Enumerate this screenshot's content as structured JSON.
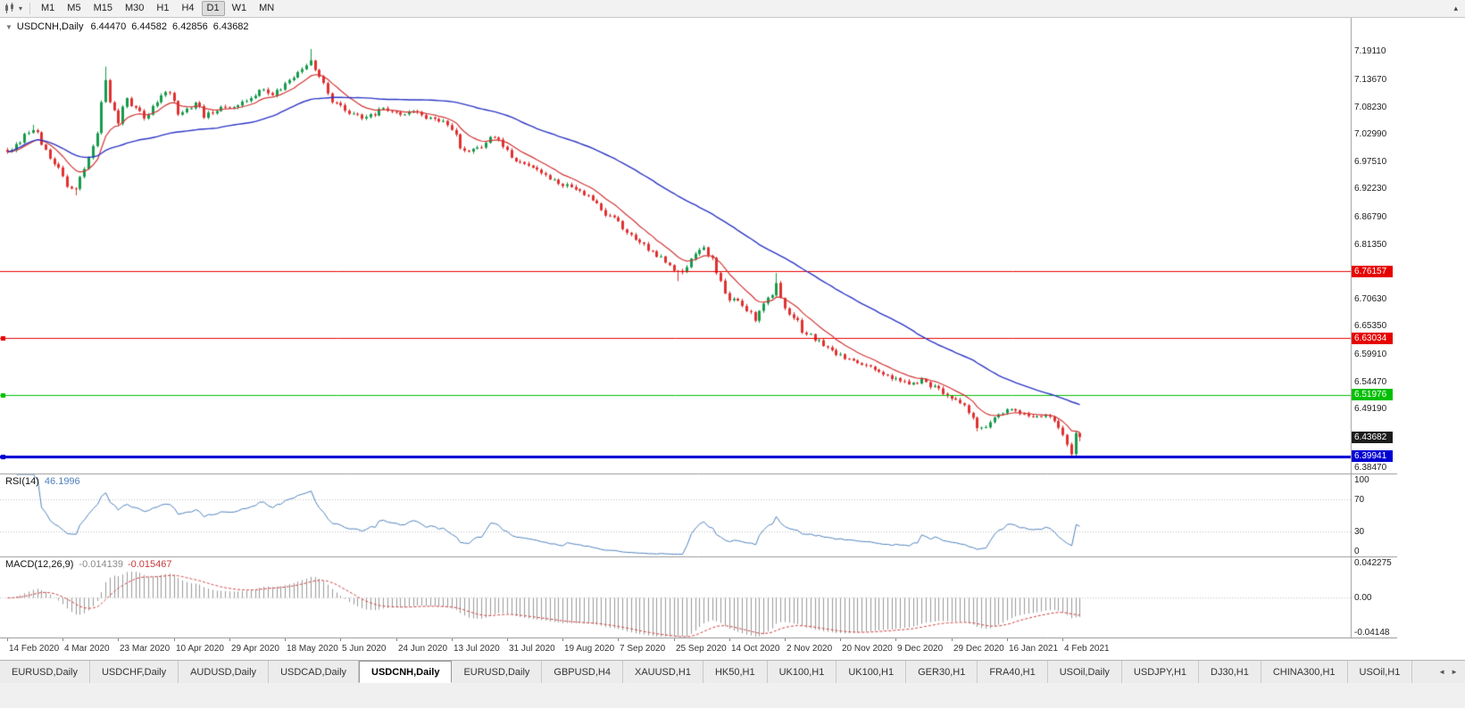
{
  "toolbar": {
    "timeframes": [
      "M1",
      "M5",
      "M15",
      "M30",
      "H1",
      "H4",
      "D1",
      "W1",
      "MN"
    ],
    "active_timeframe": "D1",
    "dropdown_glyph": "▾",
    "overflow_glyph": "▴"
  },
  "main_chart": {
    "collapse_glyph": "▼",
    "symbol": "USDCNH,Daily",
    "open": "6.44470",
    "high": "6.44582",
    "low": "6.42856",
    "close": "6.43682"
  },
  "rsi_panel": {
    "label": "RSI(14)",
    "value": "46.1996",
    "axis": [
      {
        "text": "100",
        "value": 100
      },
      {
        "text": "70",
        "value": 70
      },
      {
        "text": "30",
        "value": 30
      },
      {
        "text": "0",
        "value": 0
      }
    ]
  },
  "macd_panel": {
    "label": "MACD(12,26,9)",
    "value_macd": "-0.014139",
    "value_signal": "-0.015467",
    "axis": [
      {
        "text": "0.042275",
        "value": 0.042275
      },
      {
        "text": "0.00",
        "value": 0
      },
      {
        "text": "-0.04148",
        "value": -0.04148
      }
    ]
  },
  "price_axis": [
    {
      "text": "7.19110",
      "value": 7.1911,
      "type": "grid"
    },
    {
      "text": "7.13670",
      "value": 7.1367,
      "type": "grid"
    },
    {
      "text": "7.08230",
      "value": 7.0823,
      "type": "grid"
    },
    {
      "text": "7.02990",
      "value": 7.0299,
      "type": "grid"
    },
    {
      "text": "6.97510",
      "value": 6.9751,
      "type": "grid"
    },
    {
      "text": "6.92230",
      "value": 6.9223,
      "type": "grid"
    },
    {
      "text": "6.86790",
      "value": 6.8679,
      "type": "grid"
    },
    {
      "text": "6.81350",
      "value": 6.8135,
      "type": "grid"
    },
    {
      "text": "6.76157",
      "value": 6.76157,
      "type": "resistance"
    },
    {
      "text": "6.70630",
      "value": 6.7063,
      "type": "grid"
    },
    {
      "text": "6.65350",
      "value": 6.6535,
      "type": "grid"
    },
    {
      "text": "6.63034",
      "value": 6.63034,
      "type": "resistance"
    },
    {
      "text": "6.59910",
      "value": 6.5991,
      "type": "grid"
    },
    {
      "text": "6.54470",
      "value": 6.5447,
      "type": "grid"
    },
    {
      "text": "6.51976",
      "value": 6.51976,
      "type": "support"
    },
    {
      "text": "6.49190",
      "value": 6.4919,
      "type": "grid"
    },
    {
      "text": "6.43682",
      "value": 6.43682,
      "type": "price"
    },
    {
      "text": "6.39941",
      "value": 6.39941,
      "type": "key"
    },
    {
      "text": "6.38470",
      "value": 6.3847,
      "type": "grid"
    }
  ],
  "levels": [
    {
      "value": 6.76157,
      "color": "#e60000",
      "width": 1,
      "handle": false
    },
    {
      "value": 6.63034,
      "color": "#e60000",
      "width": 1,
      "handle": true
    },
    {
      "value": 6.51976,
      "color": "#00bf00",
      "width": 1,
      "handle": true
    },
    {
      "value": 6.39941,
      "color": "#0000d2",
      "width": 3,
      "handle": true
    }
  ],
  "colors": {
    "level_types": {
      "resistance": "#e60000",
      "support": "#00bf00",
      "key": "#0000d2",
      "price": "#1c1c1c"
    },
    "axis_text": "#1c1c1c"
  },
  "tabs": {
    "scroll_left": "◄",
    "scroll_right": "►",
    "items": [
      {
        "label": "EURUSD,Daily",
        "active": false
      },
      {
        "label": "USDCHF,Daily",
        "active": false
      },
      {
        "label": "AUDUSD,Daily",
        "active": false
      },
      {
        "label": "USDCAD,Daily",
        "active": false
      },
      {
        "label": "USDCNH,Daily",
        "active": true
      },
      {
        "label": "EURUSD,Daily",
        "active": false
      },
      {
        "label": "GBPUSD,H4",
        "active": false
      },
      {
        "label": "XAUUSD,H1",
        "active": false
      },
      {
        "label": "HK50,H1",
        "active": false
      },
      {
        "label": "UK100,H1",
        "active": false
      },
      {
        "label": "UK100,H1",
        "active": false
      },
      {
        "label": "GER30,H1",
        "active": false
      },
      {
        "label": "FRA40,H1",
        "active": false
      },
      {
        "label": "USOil,Daily",
        "active": false
      },
      {
        "label": "USDJPY,H1",
        "active": false
      },
      {
        "label": "DJ30,H1",
        "active": false
      },
      {
        "label": "CHINA300,H1",
        "active": false
      },
      {
        "label": "USOil,H1",
        "active": false
      }
    ]
  },
  "chart_data": {
    "type": "candlestick",
    "symbol": "USDCNH",
    "timeframe": "Daily",
    "title": "USDCNH,Daily",
    "bars": 252,
    "bars_per_label": 13,
    "ylim": [
      6.3655,
      7.2574
    ],
    "up_color": "#169b4b",
    "down_color": "#e03131",
    "x_labels": [
      "14 Feb 2020",
      "4 Mar 2020",
      "23 Mar 2020",
      "10 Apr 2020",
      "29 Apr 2020",
      "18 May 2020",
      "5 Jun 2020",
      "24 Jun 2020",
      "13 Jul 2020",
      "31 Jul 2020",
      "19 Aug 2020",
      "7 Sep 2020",
      "25 Sep 2020",
      "14 Oct 2020",
      "2 Nov 2020",
      "20 Nov 2020",
      "9 Dec 2020",
      "29 Dec 2020",
      "16 Jan 2021",
      "4 Feb 2021"
    ],
    "price_path": [
      [
        0,
        6.99
      ],
      [
        2,
        7.005
      ],
      [
        4,
        7.03
      ],
      [
        6,
        7.038
      ],
      [
        8,
        7.015
      ],
      [
        10,
        6.988
      ],
      [
        12,
        6.958
      ],
      [
        14,
        6.934
      ],
      [
        16,
        6.922
      ],
      [
        18,
        6.958
      ],
      [
        20,
        7.005
      ],
      [
        21,
        7.03
      ],
      [
        22,
        7.088
      ],
      [
        23,
        7.138
      ],
      [
        24,
        7.1
      ],
      [
        25,
        7.07
      ],
      [
        26,
        7.058
      ],
      [
        28,
        7.092
      ],
      [
        30,
        7.078
      ],
      [
        32,
        7.062
      ],
      [
        34,
        7.086
      ],
      [
        36,
        7.106
      ],
      [
        38,
        7.112
      ],
      [
        40,
        7.072
      ],
      [
        42,
        7.078
      ],
      [
        44,
        7.092
      ],
      [
        46,
        7.066
      ],
      [
        48,
        7.072
      ],
      [
        50,
        7.082
      ],
      [
        52,
        7.08
      ],
      [
        54,
        7.088
      ],
      [
        56,
        7.098
      ],
      [
        58,
        7.108
      ],
      [
        60,
        7.118
      ],
      [
        62,
        7.108
      ],
      [
        64,
        7.122
      ],
      [
        66,
        7.136
      ],
      [
        68,
        7.152
      ],
      [
        70,
        7.168
      ],
      [
        71,
        7.172
      ],
      [
        72,
        7.15
      ],
      [
        74,
        7.122
      ],
      [
        76,
        7.097
      ],
      [
        78,
        7.082
      ],
      [
        80,
        7.072
      ],
      [
        82,
        7.064
      ],
      [
        84,
        7.061
      ],
      [
        86,
        7.07
      ],
      [
        88,
        7.08
      ],
      [
        90,
        7.072
      ],
      [
        92,
        7.066
      ],
      [
        94,
        7.075
      ],
      [
        96,
        7.07
      ],
      [
        98,
        7.063
      ],
      [
        100,
        7.058
      ],
      [
        102,
        7.052
      ],
      [
        104,
        7.042
      ],
      [
        105,
        7.022
      ],
      [
        106,
        7.002
      ],
      [
        107,
        6.99
      ],
      [
        108,
        6.996
      ],
      [
        110,
        7.003
      ],
      [
        112,
        7.011
      ],
      [
        114,
        7.026
      ],
      [
        115,
        7.015
      ],
      [
        117,
        6.992
      ],
      [
        119,
        6.98
      ],
      [
        121,
        6.972
      ],
      [
        123,
        6.961
      ],
      [
        125,
        6.952
      ],
      [
        127,
        6.942
      ],
      [
        129,
        6.934
      ],
      [
        131,
        6.928
      ],
      [
        133,
        6.92
      ],
      [
        135,
        6.913
      ],
      [
        137,
        6.898
      ],
      [
        139,
        6.881
      ],
      [
        141,
        6.869
      ],
      [
        143,
        6.856
      ],
      [
        145,
        6.841
      ],
      [
        147,
        6.828
      ],
      [
        149,
        6.814
      ],
      [
        151,
        6.8
      ],
      [
        153,
        6.789
      ],
      [
        155,
        6.776
      ],
      [
        157,
        6.756
      ],
      [
        159,
        6.768
      ],
      [
        161,
        6.792
      ],
      [
        163,
        6.806
      ],
      [
        165,
        6.784
      ],
      [
        166,
        6.758
      ],
      [
        168,
        6.726
      ],
      [
        169,
        6.71
      ],
      [
        171,
        6.7
      ],
      [
        173,
        6.684
      ],
      [
        175,
        6.669
      ],
      [
        177,
        6.692
      ],
      [
        179,
        6.722
      ],
      [
        180,
        6.74
      ],
      [
        181,
        6.712
      ],
      [
        182,
        6.688
      ],
      [
        184,
        6.669
      ],
      [
        186,
        6.648
      ],
      [
        188,
        6.635
      ],
      [
        190,
        6.624
      ],
      [
        192,
        6.612
      ],
      [
        194,
        6.601
      ],
      [
        196,
        6.593
      ],
      [
        198,
        6.586
      ],
      [
        200,
        6.58
      ],
      [
        202,
        6.572
      ],
      [
        204,
        6.564
      ],
      [
        206,
        6.556
      ],
      [
        208,
        6.549
      ],
      [
        210,
        6.544
      ],
      [
        212,
        6.541
      ],
      [
        214,
        6.551
      ],
      [
        216,
        6.539
      ],
      [
        218,
        6.528
      ],
      [
        220,
        6.518
      ],
      [
        222,
        6.511
      ],
      [
        224,
        6.503
      ],
      [
        225,
        6.488
      ],
      [
        226,
        6.472
      ],
      [
        227,
        6.461
      ],
      [
        228,
        6.455
      ],
      [
        230,
        6.466
      ],
      [
        232,
        6.478
      ],
      [
        234,
        6.491
      ],
      [
        236,
        6.487
      ],
      [
        238,
        6.481
      ],
      [
        240,
        6.476
      ],
      [
        242,
        6.48
      ],
      [
        244,
        6.473
      ],
      [
        245,
        6.465
      ],
      [
        246,
        6.455
      ],
      [
        247,
        6.441
      ],
      [
        248,
        6.422
      ],
      [
        249,
        6.403
      ],
      [
        250,
        6.4447
      ],
      [
        251,
        6.43682
      ]
    ],
    "spikes_high": [
      [
        6,
        7.048
      ],
      [
        23,
        7.162
      ],
      [
        71,
        7.1965
      ],
      [
        180,
        6.758
      ]
    ],
    "spikes_low": [
      [
        16,
        6.91
      ],
      [
        157,
        6.742
      ],
      [
        227,
        6.448
      ],
      [
        249,
        6.3975
      ]
    ],
    "last_ohlc": {
      "open": 6.4447,
      "high": 6.44582,
      "low": 6.42856,
      "close": 6.43682
    },
    "indicators": {
      "ma_fast": {
        "type": "EMA",
        "period": 10,
        "color": "#d23535"
      },
      "ma_slow": {
        "type": "SMA",
        "period": 50,
        "color": "#2b35c4"
      },
      "rsi": {
        "period": 14,
        "current": 46.1996,
        "color": "#4f81bd",
        "levels": [
          70,
          30
        ],
        "range": [
          0,
          100
        ]
      },
      "macd": {
        "fast": 12,
        "slow": 26,
        "signal": 9,
        "current_macd": -0.014139,
        "current_signal": -0.015467,
        "range": [
          -0.04148,
          0.042275
        ],
        "hist_color": "#999999",
        "signal_color": "#cf4040"
      }
    },
    "layout": {
      "bar_start_x": 8,
      "bar_step": 4.786,
      "plot_right": 1513,
      "panes": {
        "main_h": 511,
        "rsi_h": 92,
        "macd_h": 90
      }
    }
  }
}
